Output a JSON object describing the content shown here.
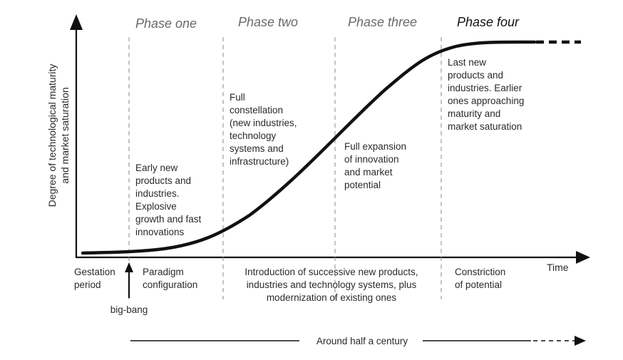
{
  "diagram": {
    "y_axis_label": [
      "Degree of technological maturity",
      "and market saturation"
    ],
    "x_axis_label": "Time",
    "phases": [
      {
        "label": "Phase one"
      },
      {
        "label": "Phase two"
      },
      {
        "label": "Phase three"
      },
      {
        "label": "Phase four"
      }
    ],
    "phase_descriptions": [
      [
        "Early new",
        "products and",
        "industries.",
        "Explosive",
        "growth and fast",
        "innovations"
      ],
      [
        "Full",
        "constellation",
        "(new industries,",
        "technology",
        "systems and",
        "infrastructure)"
      ],
      [
        "Full expansion",
        "of innovation",
        "and market",
        "potential"
      ],
      [
        "Last new",
        "products and",
        "industries. Earlier",
        "ones approaching",
        "maturity and",
        "market saturation"
      ]
    ],
    "bottom_labels": {
      "gestation": [
        "Gestation",
        "period"
      ],
      "paradigm": [
        "Paradigm",
        "configuration"
      ],
      "introduction": [
        "Introduction of successive new products,",
        "industries and technology systems, plus",
        "modernization of existing ones"
      ],
      "constriction": [
        "Constriction",
        "of potential"
      ],
      "big_bang": "big-bang"
    },
    "timespan_label": "Around half a century"
  }
}
